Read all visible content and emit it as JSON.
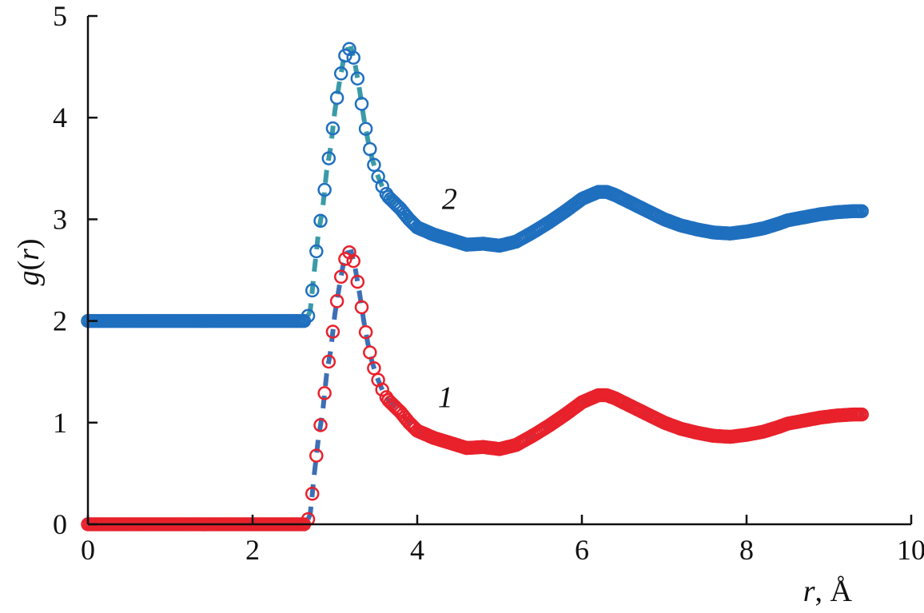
{
  "chart_data": {
    "type": "scatter",
    "ylabel_parts": [
      "g",
      "(",
      "r",
      ")"
    ],
    "xlabel_parts": [
      "r",
      ", Å"
    ],
    "xlim": [
      0,
      10
    ],
    "ylim": [
      0,
      5
    ],
    "x_ticks": [
      "0",
      "2",
      "4",
      "6",
      "8",
      "10"
    ],
    "y_ticks": [
      "0",
      "1",
      "2",
      "3",
      "4",
      "5"
    ],
    "grid": false,
    "legend": "none",
    "annotations": [
      {
        "text": "1",
        "x": 4.25,
        "y": 1.15
      },
      {
        "text": "2",
        "x": 4.3,
        "y": 3.1
      }
    ],
    "series": [
      {
        "marker_color": "#e8212b",
        "line_color": "#3d6fb5",
        "x": [
          0.0,
          2.65,
          2.7,
          2.75,
          2.8,
          2.85,
          2.9,
          2.95,
          3.0,
          3.05,
          3.1,
          3.15,
          3.2,
          3.25,
          3.3,
          3.35,
          3.4,
          3.45,
          3.5,
          3.55,
          3.6,
          3.65,
          3.7,
          3.8,
          3.9,
          4.0,
          4.2,
          4.4,
          4.6,
          4.8,
          5.0,
          5.2,
          5.4,
          5.6,
          5.8,
          6.0,
          6.2,
          6.3,
          6.4,
          6.6,
          6.8,
          7.0,
          7.2,
          7.4,
          7.6,
          7.8,
          8.0,
          8.2,
          8.4,
          8.5,
          8.7,
          8.9,
          9.1,
          9.3,
          9.42
        ],
        "y": [
          0.0,
          0.0,
          0.1,
          0.5,
          0.85,
          1.1,
          1.48,
          1.72,
          2.07,
          2.32,
          2.55,
          2.67,
          2.68,
          2.5,
          2.27,
          2.0,
          1.78,
          1.6,
          1.47,
          1.37,
          1.28,
          1.22,
          1.18,
          1.1,
          1.0,
          0.92,
          0.85,
          0.8,
          0.75,
          0.76,
          0.74,
          0.78,
          0.87,
          0.97,
          1.08,
          1.2,
          1.27,
          1.27,
          1.24,
          1.16,
          1.08,
          1.0,
          0.94,
          0.9,
          0.87,
          0.86,
          0.88,
          0.91,
          0.96,
          0.99,
          1.02,
          1.05,
          1.07,
          1.08,
          1.08
        ]
      },
      {
        "marker_color": "#1f6fbf",
        "line_color": "#3a9aa8",
        "x": [
          0.0,
          2.65,
          2.7,
          2.75,
          2.8,
          2.85,
          2.9,
          2.95,
          3.0,
          3.05,
          3.1,
          3.15,
          3.2,
          3.25,
          3.3,
          3.35,
          3.4,
          3.45,
          3.5,
          3.55,
          3.6,
          3.65,
          3.7,
          3.8,
          3.9,
          4.0,
          4.2,
          4.4,
          4.6,
          4.8,
          5.0,
          5.2,
          5.4,
          5.6,
          5.8,
          6.0,
          6.2,
          6.3,
          6.4,
          6.6,
          6.8,
          7.0,
          7.2,
          7.4,
          7.6,
          7.8,
          8.0,
          8.2,
          8.4,
          8.5,
          8.7,
          8.9,
          9.1,
          9.3,
          9.42
        ],
        "y": [
          2.0,
          2.0,
          2.1,
          2.5,
          2.87,
          3.1,
          3.48,
          3.72,
          4.07,
          4.32,
          4.55,
          4.67,
          4.68,
          4.5,
          4.27,
          4.0,
          3.78,
          3.6,
          3.47,
          3.37,
          3.28,
          3.22,
          3.18,
          3.1,
          3.0,
          2.92,
          2.85,
          2.8,
          2.75,
          2.76,
          2.74,
          2.78,
          2.87,
          2.97,
          3.08,
          3.2,
          3.27,
          3.27,
          3.24,
          3.16,
          3.08,
          3.0,
          2.94,
          2.9,
          2.87,
          2.86,
          2.88,
          2.91,
          2.96,
          2.99,
          3.02,
          3.05,
          3.07,
          3.08,
          3.08
        ]
      }
    ]
  }
}
